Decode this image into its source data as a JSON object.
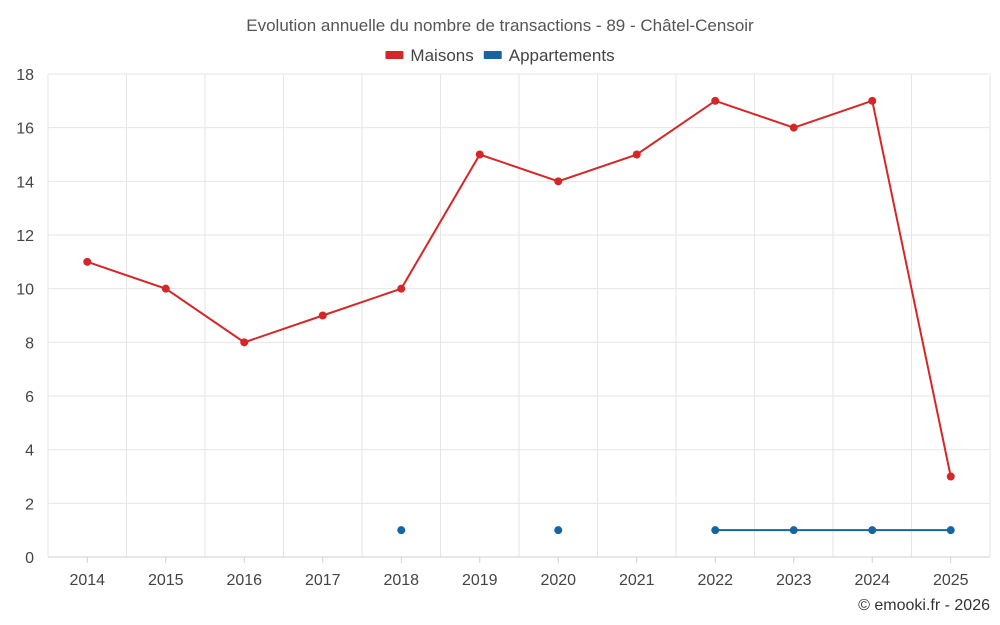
{
  "chart_data": {
    "type": "line",
    "title": "Evolution annuelle du nombre de transactions - 89 - Châtel-Censoir",
    "x": [
      "2014",
      "2015",
      "2016",
      "2017",
      "2018",
      "2019",
      "2020",
      "2021",
      "2022",
      "2023",
      "2024",
      "2025"
    ],
    "series": [
      {
        "name": "Maisons",
        "color": "#d62728",
        "values": [
          11,
          10,
          8,
          9,
          10,
          15,
          14,
          15,
          17,
          16,
          17,
          3
        ]
      },
      {
        "name": "Appartements",
        "color": "#1565a0",
        "values": [
          null,
          null,
          null,
          null,
          1,
          null,
          1,
          null,
          1,
          1,
          1,
          1
        ]
      }
    ],
    "ylim": [
      0,
      18
    ],
    "yticks": [
      0,
      2,
      4,
      6,
      8,
      10,
      12,
      14,
      16,
      18
    ],
    "grid": true,
    "legend": "top-center",
    "xlabel": "",
    "ylabel": ""
  },
  "credit": "© emooki.fr - 2026"
}
